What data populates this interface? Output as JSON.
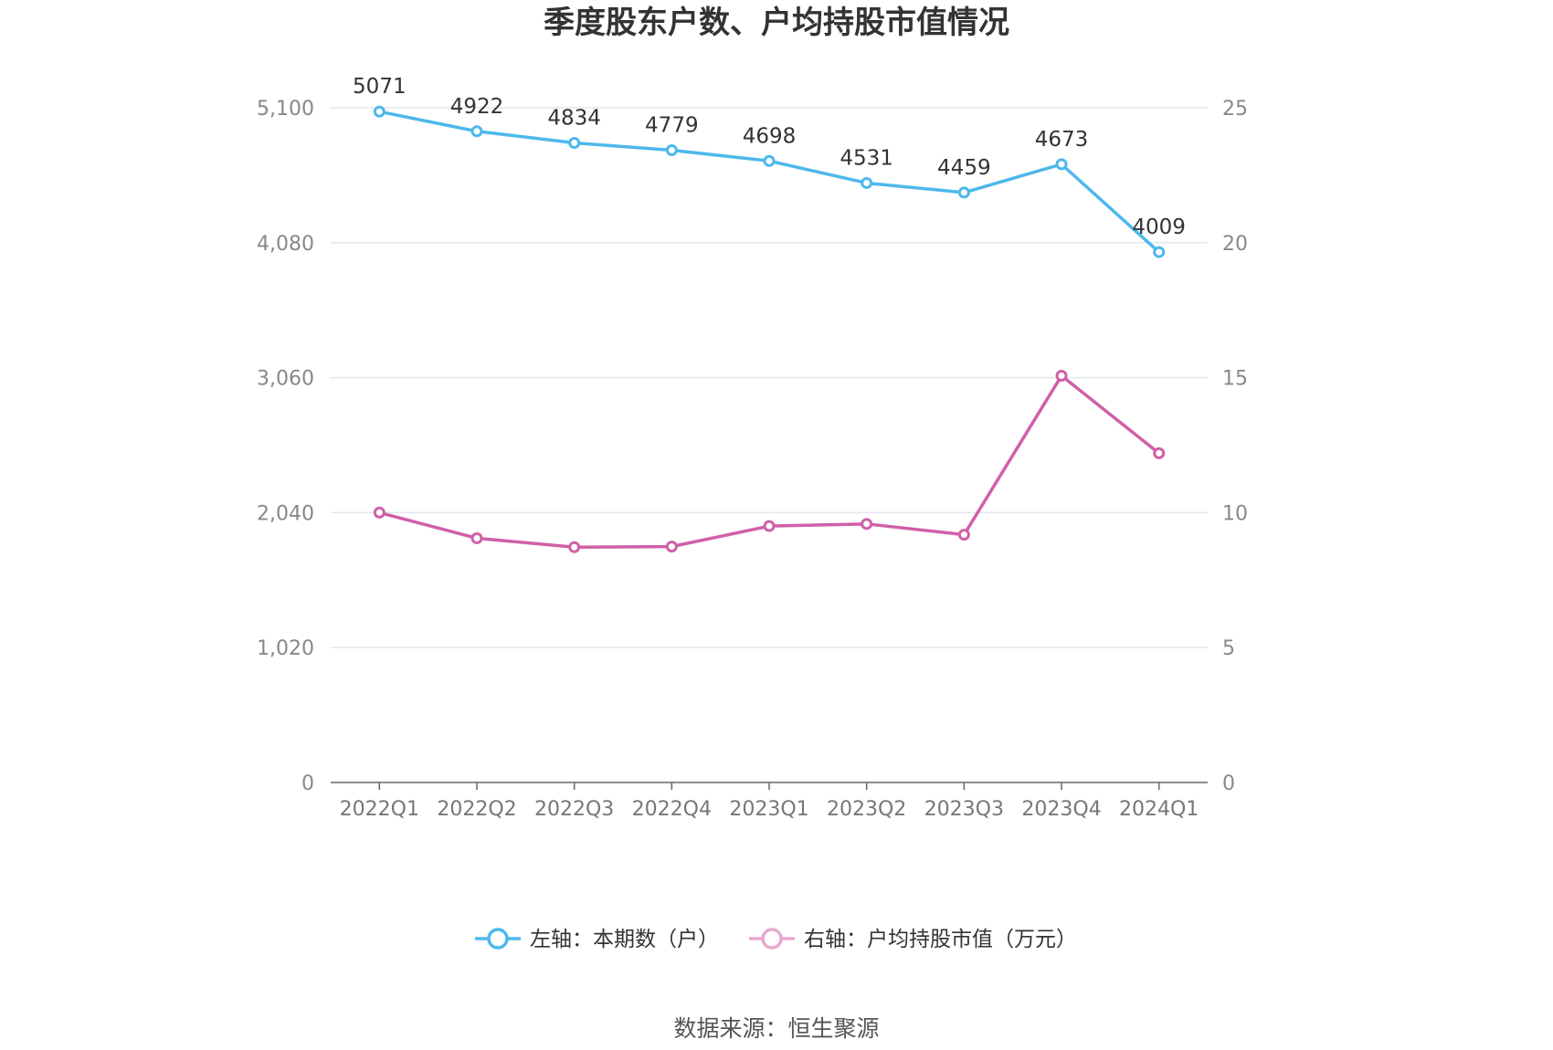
{
  "chart_data": {
    "type": "line",
    "title": "季度股东户数、户均持股市值情况",
    "categories": [
      "2022Q1",
      "2022Q2",
      "2022Q3",
      "2022Q4",
      "2023Q1",
      "2023Q2",
      "2023Q3",
      "2023Q4",
      "2024Q1"
    ],
    "series": [
      {
        "name": "左轴：本期数（户）",
        "axis": "left",
        "color": "#4db8ec",
        "values": [
          5071,
          4922,
          4834,
          4779,
          4698,
          4531,
          4459,
          4673,
          4009
        ],
        "show_labels": true
      },
      {
        "name": "右轴：户均持股市值（万元）",
        "axis": "right",
        "color": "#d060a8",
        "legend_color": "#e8a8d0",
        "values": [
          10.0,
          9.05,
          8.72,
          8.74,
          9.5,
          9.58,
          9.18,
          15.07,
          12.2
        ],
        "show_labels": false
      }
    ],
    "left_axis": {
      "ylim": [
        0,
        5100
      ],
      "ticks": [
        "0",
        "1,020",
        "2,040",
        "3,060",
        "4,080",
        "5,100"
      ]
    },
    "right_axis": {
      "ylim": [
        0,
        25
      ],
      "ticks": [
        "0",
        "5",
        "10",
        "15",
        "20",
        "25"
      ]
    },
    "grid": true,
    "legend_position": "bottom"
  },
  "source": "数据来源：恒生聚源"
}
